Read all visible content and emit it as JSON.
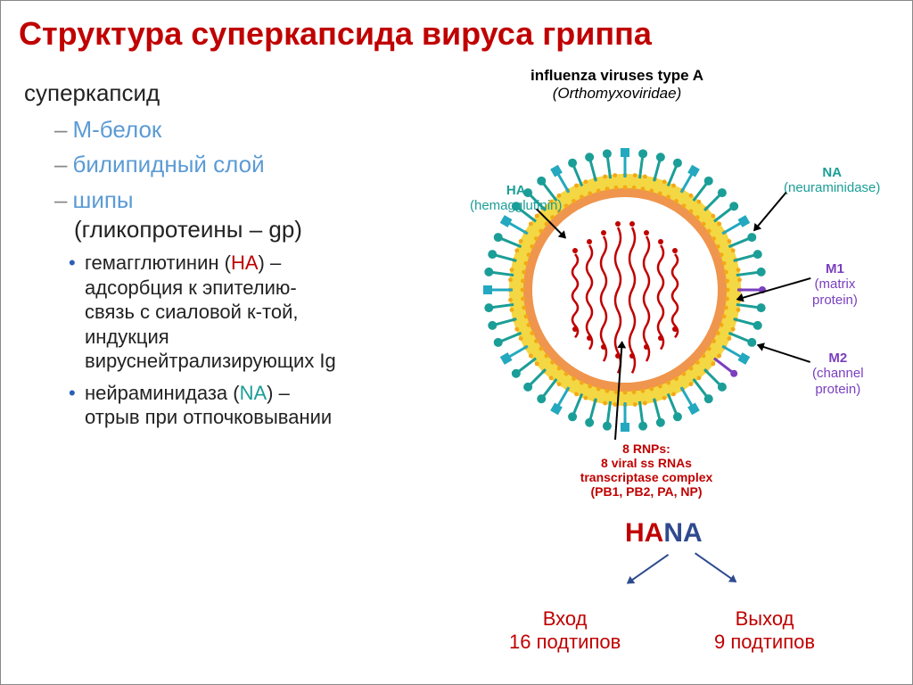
{
  "title_color": "#c00000",
  "title": "Структура суперкапсида вируса гриппа",
  "left": {
    "header": "суперкапсид",
    "l1a": "М-белок",
    "l1b": "билипидный слой",
    "l1c_pre": "шипы",
    "l1c_paren": "(гликопротеины – gp)",
    "l2a_pre": "гемагглютинин (",
    "l2a_ha": "HA",
    "l2a_post": ") – адсорбция к эпителию-связь с сиаловой к-той, индукция вируснейтрализирующих Ig",
    "l2b_pre": " нейраминидаза (",
    "l2b_na": "NA",
    "l2b_post": ") – отрыв при отпочковывании"
  },
  "right": {
    "eng_title": "influenza viruses type A",
    "eng_sub": "(Orthomyxoviridae)",
    "labels": {
      "ha_t": "HA",
      "ha_s": "(hemagglutinin)",
      "na_t": "NA",
      "na_s": "(neuraminidase)",
      "m1_t": "M1",
      "m1_s": "(matrix protein)",
      "m2_t": "M2",
      "m2_s": "(channel protein)",
      "rnp_t": "8 RNPs:",
      "rnp_s1": "8 viral ss RNAs",
      "rnp_s2": "transcriptase complex",
      "rnp_s3": "(PB1, PB2, PA, NP)"
    }
  },
  "hana": {
    "h": "HA",
    "n": "NA"
  },
  "bottom": {
    "left_t": "Вход",
    "left_s": "16 подтипов",
    "right_t": "Выход",
    "right_s": "9 подтипов"
  },
  "diagram": {
    "outer_r": 126,
    "membrane_color": "#f3d743",
    "membrane_dot_color": "#f3a818",
    "matrix_color": "#ef954d",
    "ha_color": "#1b9e97",
    "na_color": "#23a8bf",
    "m2_color": "#7a3fbf",
    "rna_color": "#c00000",
    "spike_count": 48,
    "spike_len": 28,
    "rna_count": 8
  }
}
